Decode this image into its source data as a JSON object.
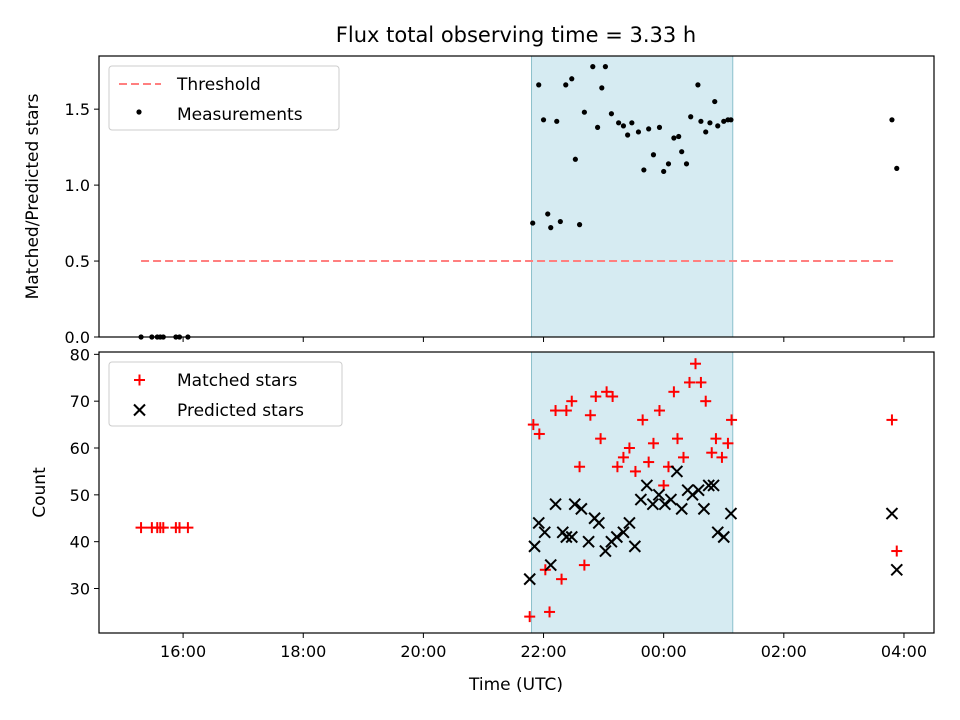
{
  "title": "Flux total observing time = 3.33 h",
  "xlabel": "Time (UTC)",
  "colors": {
    "threshold": "#ff7f7f",
    "measurement": "#000000",
    "matched": "#ff0000",
    "predicted": "#000000",
    "observing_window": "#add8e6"
  },
  "chart_data": [
    {
      "type": "scatter",
      "ylabel": "Matched/Predicted stars",
      "x_unit": "hours since 00:00 (UTC, previous day)",
      "xlim": [
        14.6,
        28.5
      ],
      "ylim": [
        0,
        1.85
      ],
      "yticks": [
        0.0,
        0.5,
        1.0,
        1.5
      ],
      "yticklabels": [
        "0.0",
        "0.5",
        "1.0",
        "1.5"
      ],
      "legend": [
        "Threshold",
        "Measurements"
      ],
      "legend_position": "top-left",
      "observing_window": {
        "start": 21.8,
        "end": 25.15
      },
      "threshold": {
        "name": "Threshold",
        "value": 0.5,
        "x_start": 15.3,
        "x_end": 27.85,
        "style": "dashed"
      },
      "series": [
        {
          "name": "Measurements",
          "marker": "dot",
          "x": [
            15.3,
            15.48,
            15.57,
            15.62,
            15.67,
            15.88,
            15.94,
            16.08,
            21.82,
            21.92,
            22.0,
            22.07,
            22.12,
            22.22,
            22.28,
            22.37,
            22.47,
            22.53,
            22.6,
            22.68,
            22.82,
            22.9,
            22.97,
            23.03,
            23.13,
            23.25,
            23.33,
            23.4,
            23.47,
            23.58,
            23.67,
            23.75,
            23.83,
            23.93,
            24.0,
            24.08,
            24.17,
            24.25,
            24.3,
            24.38,
            24.45,
            24.57,
            24.62,
            24.7,
            24.77,
            24.85,
            24.9,
            25.0,
            25.07,
            25.12,
            27.8,
            27.88
          ],
          "y": [
            0.0,
            0.0,
            0.0,
            0.0,
            0.0,
            0.0,
            0.0,
            0.0,
            0.75,
            1.66,
            1.43,
            0.81,
            0.72,
            1.42,
            0.76,
            1.66,
            1.7,
            1.17,
            0.74,
            1.48,
            1.78,
            1.38,
            1.64,
            1.78,
            1.47,
            1.41,
            1.39,
            1.33,
            1.41,
            1.35,
            1.1,
            1.37,
            1.2,
            1.38,
            1.09,
            1.14,
            1.31,
            1.32,
            1.22,
            1.14,
            1.45,
            1.66,
            1.42,
            1.35,
            1.41,
            1.55,
            1.39,
            1.42,
            1.43,
            1.43,
            1.43,
            1.11
          ]
        }
      ]
    },
    {
      "type": "scatter",
      "ylabel": "Count",
      "xlim": [
        14.6,
        28.5
      ],
      "ylim": [
        20.5,
        80.5
      ],
      "yticks": [
        30,
        40,
        50,
        60,
        70,
        80
      ],
      "xticks": [
        16,
        18,
        20,
        22,
        24,
        26,
        28
      ],
      "xticklabels": [
        "16:00",
        "18:00",
        "20:00",
        "22:00",
        "00:00",
        "02:00",
        "04:00"
      ],
      "legend": [
        "Matched stars",
        "Predicted stars"
      ],
      "legend_position": "top-left",
      "observing_window": {
        "start": 21.8,
        "end": 25.15
      },
      "series": [
        {
          "name": "Matched stars",
          "marker": "plus",
          "x": [
            15.3,
            15.48,
            15.57,
            15.62,
            15.67,
            15.88,
            15.94,
            16.08,
            21.77,
            21.83,
            21.93,
            22.03,
            22.1,
            22.2,
            22.3,
            22.38,
            22.47,
            22.6,
            22.68,
            22.78,
            22.87,
            22.95,
            23.05,
            23.15,
            23.23,
            23.33,
            23.43,
            23.53,
            23.65,
            23.75,
            23.83,
            23.93,
            24.0,
            24.08,
            24.17,
            24.23,
            24.33,
            24.43,
            24.53,
            24.62,
            24.7,
            24.8,
            24.87,
            24.97,
            25.07,
            25.13,
            27.8,
            27.88
          ],
          "y": [
            43,
            43,
            43,
            43,
            43,
            43,
            43,
            43,
            24,
            65,
            63,
            34,
            25,
            68,
            32,
            68,
            70,
            56,
            35,
            67,
            71,
            62,
            72,
            71,
            56,
            58,
            60,
            55,
            66,
            57,
            61,
            68,
            52,
            56,
            72,
            62,
            58,
            74,
            78,
            74,
            70,
            59,
            62,
            58,
            61,
            66,
            66,
            38
          ]
        },
        {
          "name": "Predicted stars",
          "marker": "x",
          "x": [
            21.77,
            21.85,
            21.92,
            22.02,
            22.12,
            22.2,
            22.32,
            22.38,
            22.47,
            22.52,
            22.63,
            22.75,
            22.85,
            22.92,
            23.03,
            23.13,
            23.22,
            23.33,
            23.43,
            23.52,
            23.62,
            23.72,
            23.82,
            23.92,
            24.02,
            24.12,
            24.22,
            24.3,
            24.4,
            24.48,
            24.58,
            24.67,
            24.75,
            24.83,
            24.9,
            25.0,
            25.12,
            27.8,
            27.88
          ],
          "y": [
            32,
            39,
            44,
            42,
            35,
            48,
            42,
            41,
            41,
            48,
            47,
            40,
            45,
            44,
            38,
            40,
            41,
            42,
            44,
            39,
            49,
            52,
            48,
            50,
            48,
            49,
            55,
            47,
            51,
            50,
            51,
            47,
            52,
            52,
            42,
            41,
            46,
            46,
            34
          ]
        }
      ]
    }
  ]
}
